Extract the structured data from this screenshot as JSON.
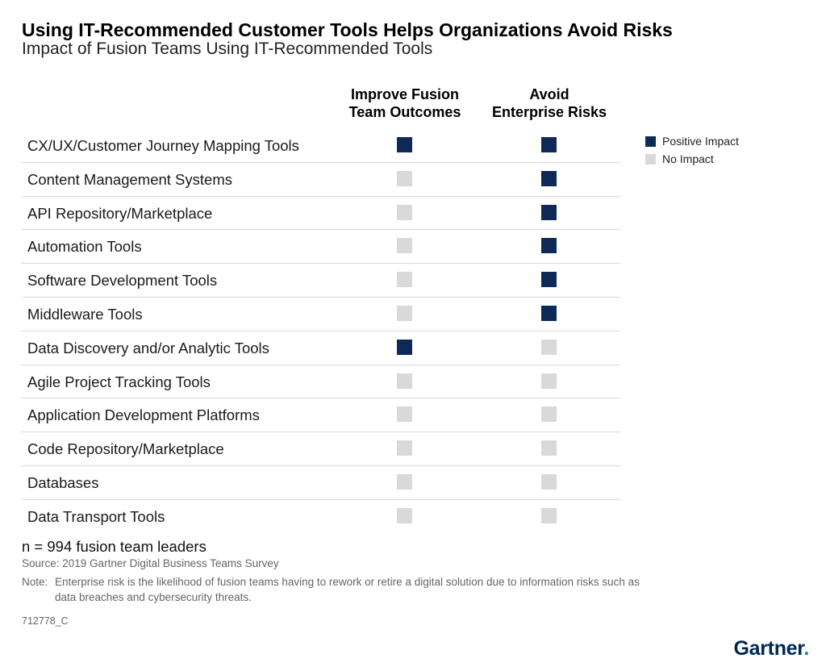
{
  "title": "Using IT-Recommended Customer Tools Helps Organizations Avoid Risks",
  "subtitle": "Impact of Fusion Teams Using IT-Recommended Tools",
  "chart_data": {
    "type": "table",
    "columns": [
      {
        "line1": "Improve Fusion",
        "line2": "Team Outcomes"
      },
      {
        "line1": "Avoid",
        "line2": "Enterprise Risks"
      }
    ],
    "rows": [
      {
        "label": "CX/UX/Customer Journey Mapping Tools",
        "values": [
          "positive",
          "positive"
        ]
      },
      {
        "label": "Content Management Systems",
        "values": [
          "none",
          "positive"
        ]
      },
      {
        "label": "API Repository/Marketplace",
        "values": [
          "none",
          "positive"
        ]
      },
      {
        "label": "Automation Tools",
        "values": [
          "none",
          "positive"
        ]
      },
      {
        "label": "Software Development Tools",
        "values": [
          "none",
          "positive"
        ]
      },
      {
        "label": "Middleware Tools",
        "values": [
          "none",
          "positive"
        ]
      },
      {
        "label": "Data Discovery and/or Analytic Tools",
        "values": [
          "positive",
          "none"
        ]
      },
      {
        "label": "Agile Project Tracking Tools",
        "values": [
          "none",
          "none"
        ]
      },
      {
        "label": "Application Development Platforms",
        "values": [
          "none",
          "none"
        ]
      },
      {
        "label": "Code Repository/Marketplace",
        "values": [
          "none",
          "none"
        ]
      },
      {
        "label": "Databases",
        "values": [
          "none",
          "none"
        ]
      },
      {
        "label": "Data Transport Tools",
        "values": [
          "none",
          "none"
        ]
      }
    ],
    "legend": [
      {
        "key": "positive",
        "label": "Positive Impact",
        "color": "#0d2a57"
      },
      {
        "key": "none",
        "label": "No Impact",
        "color": "#d9d9d9"
      }
    ],
    "legend_position": "top-right"
  },
  "footer": {
    "sample": "n = 994 fusion team leaders",
    "source": "Source: 2019 Gartner Digital Business Teams Survey",
    "note_label": "Note:",
    "note_text": "Enterprise risk is the likelihood of fusion teams having to rework or retire a digital solution due to information risks such as data breaches and cybersecurity threats.",
    "code": "712778_C",
    "logo": "Gartner",
    "logo_dot": "."
  }
}
